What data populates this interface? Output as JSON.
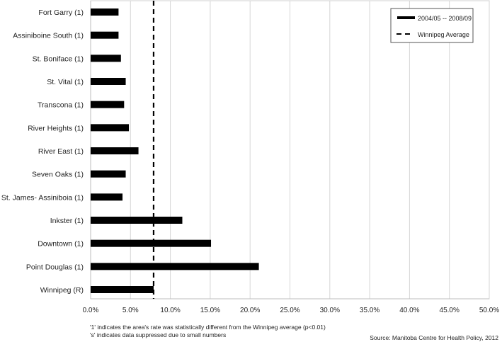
{
  "chart_data": {
    "type": "bar",
    "orientation": "horizontal",
    "categories": [
      "Fort Garry (1)",
      "Assiniboine South (1)",
      "St. Boniface (1)",
      "St. Vital (1)",
      "Transcona (1)",
      "River Heights (1)",
      "River East (1)",
      "Seven Oaks (1)",
      "St. James- Assiniboia (1)",
      "Inkster (1)",
      "Downtown (1)",
      "Point Douglas (1)",
      "Winnipeg (R)"
    ],
    "series": [
      {
        "name": "2004/05 -- 2008/09",
        "values": [
          3.5,
          3.5,
          3.8,
          4.4,
          4.2,
          4.8,
          6.0,
          4.4,
          4.0,
          11.5,
          15.1,
          21.1,
          7.9
        ],
        "color": "#000000"
      }
    ],
    "reference_line": {
      "name": "Winnipeg Average",
      "value": 7.9,
      "style": "dashed",
      "color": "#000000"
    },
    "xlim": [
      0,
      50
    ],
    "xticks": [
      "0.0%",
      "5.0%",
      "10.0%",
      "15.0%",
      "20.0%",
      "25.0%",
      "30.0%",
      "35.0%",
      "40.0%",
      "45.0%",
      "50.0%"
    ],
    "grid": "vertical",
    "legend_position": "top-right",
    "title": "",
    "xlabel": "",
    "ylabel": ""
  },
  "footnotes": [
    "'1' indicates the area's rate was statistically different from the Winnipeg average (p<0.01)",
    "'s' indicates data suppressed due to small numbers"
  ],
  "source": "Source: Manitoba Centre for Health Policy, 2012"
}
